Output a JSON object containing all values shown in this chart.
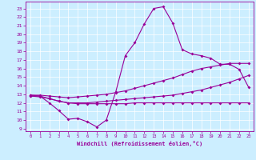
{
  "xlabel": "Windchill (Refroidissement éolien,°C)",
  "bg_color": "#cceeff",
  "line_color": "#990099",
  "grid_color": "#ffffff",
  "x_ticks": [
    0,
    1,
    2,
    3,
    4,
    5,
    6,
    7,
    8,
    9,
    10,
    11,
    12,
    13,
    14,
    15,
    16,
    17,
    18,
    19,
    20,
    21,
    22,
    23
  ],
  "y_ticks": [
    9,
    10,
    11,
    12,
    13,
    14,
    15,
    16,
    17,
    18,
    19,
    20,
    21,
    22,
    23
  ],
  "ylim": [
    8.7,
    23.8
  ],
  "xlim": [
    -0.5,
    23.5
  ],
  "line1_x": [
    0,
    1,
    2,
    3,
    4,
    5,
    6,
    7,
    8,
    9,
    10,
    11,
    12,
    13,
    14,
    15,
    16,
    17,
    18,
    19,
    20,
    21,
    22,
    23
  ],
  "line1_y": [
    12.8,
    12.8,
    12.0,
    11.1,
    10.1,
    10.2,
    9.8,
    9.2,
    10.0,
    13.3,
    17.5,
    19.0,
    21.2,
    23.0,
    23.2,
    21.3,
    18.2,
    17.7,
    17.5,
    17.2,
    16.5,
    16.5,
    15.9,
    13.8
  ],
  "line2_x": [
    0,
    1,
    2,
    3,
    4,
    5,
    6,
    7,
    8,
    9,
    10,
    11,
    12,
    13,
    14,
    15,
    16,
    17,
    18,
    19,
    20,
    21,
    22,
    23
  ],
  "line2_y": [
    12.9,
    12.9,
    12.8,
    12.7,
    12.6,
    12.7,
    12.8,
    12.9,
    13.0,
    13.2,
    13.4,
    13.7,
    14.0,
    14.3,
    14.6,
    14.9,
    15.3,
    15.7,
    16.0,
    16.2,
    16.4,
    16.6,
    16.6,
    16.6
  ],
  "line3_x": [
    0,
    1,
    2,
    3,
    4,
    5,
    6,
    7,
    8,
    9,
    10,
    11,
    12,
    13,
    14,
    15,
    16,
    17,
    18,
    19,
    20,
    21,
    22,
    23
  ],
  "line3_y": [
    12.9,
    12.8,
    12.5,
    12.2,
    12.0,
    12.0,
    12.0,
    12.1,
    12.2,
    12.3,
    12.4,
    12.5,
    12.6,
    12.7,
    12.8,
    12.9,
    13.1,
    13.3,
    13.5,
    13.8,
    14.1,
    14.4,
    14.8,
    15.2
  ],
  "line4_x": [
    0,
    1,
    2,
    3,
    4,
    5,
    6,
    7,
    8,
    9,
    10,
    11,
    12,
    13,
    14,
    15,
    16,
    17,
    18,
    19,
    20,
    21,
    22,
    23
  ],
  "line4_y": [
    12.8,
    12.7,
    12.5,
    12.2,
    12.0,
    11.9,
    11.9,
    11.9,
    11.9,
    11.9,
    11.9,
    12.0,
    12.0,
    12.0,
    12.0,
    12.0,
    12.0,
    12.0,
    12.0,
    12.0,
    12.0,
    12.0,
    12.0,
    12.0
  ]
}
